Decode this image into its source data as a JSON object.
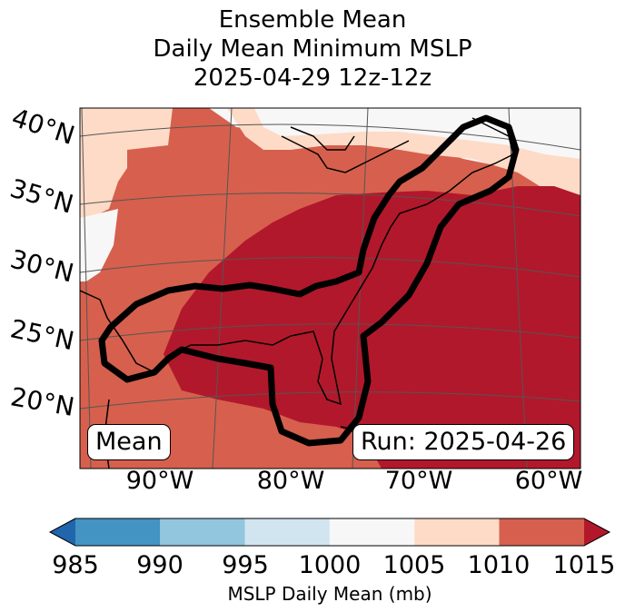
{
  "title": {
    "line1": "Ensemble Mean",
    "line2": "Daily Mean Minimum MSLP",
    "line3": "2025-04-29 12z-12z"
  },
  "chart_data": {
    "type": "heatmap",
    "projection": "map",
    "variable": "MSLP Daily Mean (mb)",
    "lon_labels": [
      "90°W",
      "80°W",
      "70°W",
      "60°W"
    ],
    "lat_labels": [
      "40°N",
      "35°N",
      "30°N",
      "25°N",
      "20°N"
    ],
    "colorbar": {
      "label": "MSLP Daily Mean (mb)",
      "ticks": [
        "985",
        "990",
        "995",
        "1000",
        "1005",
        "1010",
        "1015"
      ],
      "bins": [
        {
          "range": "<985",
          "color": "#2166ac"
        },
        {
          "range": "985-990",
          "color": "#4393c3"
        },
        {
          "range": "990-995",
          "color": "#92c5de"
        },
        {
          "range": "995-1000",
          "color": "#d1e5f0"
        },
        {
          "range": "1000-1005",
          "color": "#f7f7f7"
        },
        {
          "range": "1005-1010",
          "color": "#fddbc7"
        },
        {
          "range": "1010-1015",
          "color": "#d6604d"
        },
        {
          "range": ">1015",
          "color": "#b2182b"
        }
      ],
      "extend": "both"
    },
    "contour": {
      "color": "#000000",
      "description": "thick black outline region"
    },
    "annotations": {
      "left": "Mean",
      "right": "Run: 2025-04-26"
    }
  }
}
